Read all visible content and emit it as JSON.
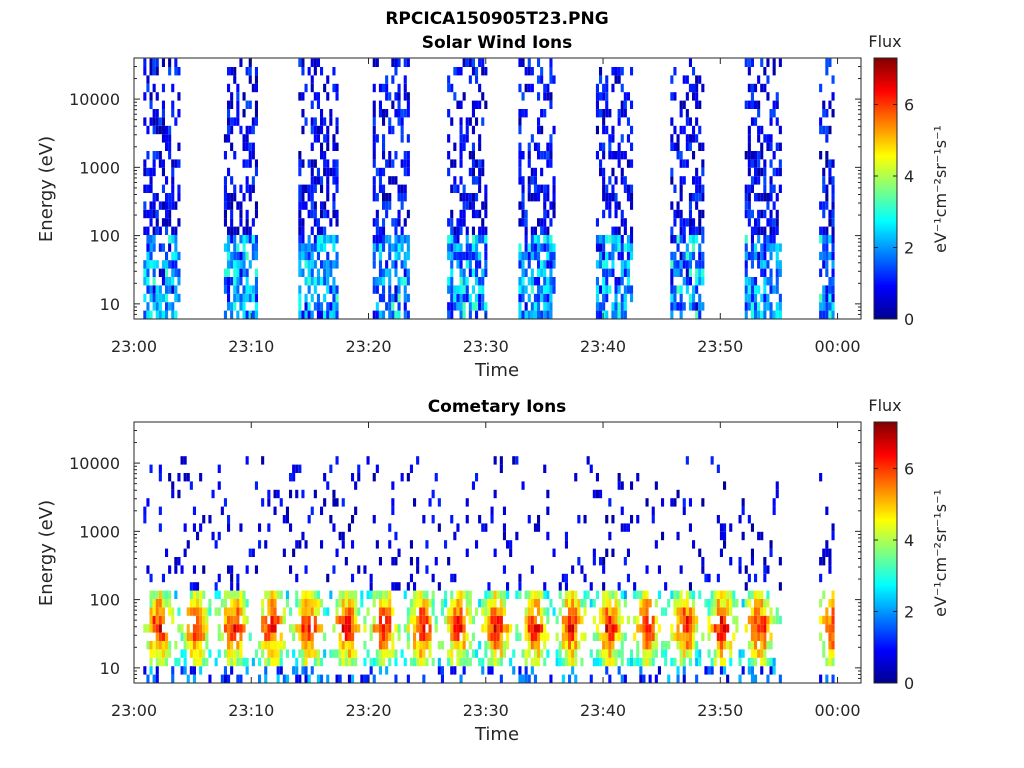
{
  "figure_title": "RPCICA150905T23.PNG",
  "chart_data": [
    {
      "type": "heatmap",
      "title": "Solar Wind Ions",
      "xlabel": "Time",
      "ylabel": "Energy (eV)",
      "yscale": "log",
      "ylim": [
        6,
        40000
      ],
      "yticks": [
        10,
        100,
        1000,
        10000
      ],
      "ytick_labels": [
        "10",
        "100",
        "1000",
        "10000"
      ],
      "xlim": [
        "23:00",
        "00:02"
      ],
      "xticks": [
        "23:00",
        "23:10",
        "23:20",
        "23:30",
        "23:40",
        "23:50",
        "00:00"
      ],
      "colorbar": {
        "title": "Flux",
        "label": "eV⁻¹cm⁻²sr⁻¹s⁻¹",
        "range": [
          0,
          7.3
        ],
        "ticks": [
          "0",
          "2",
          "4",
          "6"
        ],
        "colormap": "jet"
      },
      "scan_intervals": [
        [
          "23:00:40",
          "23:04:00"
        ],
        [
          "23:07:40",
          "23:10:40"
        ],
        [
          "23:14:00",
          "23:17:30"
        ],
        [
          "23:20:20",
          "23:23:30"
        ],
        [
          "23:26:40",
          "23:30:10"
        ],
        [
          "23:32:50",
          "23:36:00"
        ],
        [
          "23:39:20",
          "23:42:30"
        ],
        [
          "23:45:40",
          "23:48:40"
        ],
        [
          "23:52:00",
          "23:55:10"
        ],
        [
          "23:58:30",
          "23:59:50"
        ]
      ],
      "features": [
        {
          "energy_range": [
            6,
            90
          ],
          "level": [
            1.5,
            3.5
          ],
          "description": ""
        },
        {
          "energy_range": [
            90,
            40000
          ],
          "level": [
            0.2,
            1.5
          ],
          "description": ""
        }
      ]
    },
    {
      "type": "heatmap",
      "title": "Cometary Ions",
      "xlabel": "Time",
      "ylabel": "Energy (eV)",
      "yscale": "log",
      "ylim": [
        6,
        40000
      ],
      "yticks": [
        10,
        100,
        1000,
        10000
      ],
      "ytick_labels": [
        "10",
        "100",
        "1000",
        "10000"
      ],
      "xlim": [
        "23:00",
        "00:02"
      ],
      "xticks": [
        "23:00",
        "23:10",
        "23:20",
        "23:30",
        "23:40",
        "23:50",
        "00:00"
      ],
      "colorbar": {
        "title": "Flux",
        "label": "eV⁻¹cm⁻²sr⁻¹s⁻¹",
        "range": [
          0,
          7.3
        ],
        "ticks": [
          "0",
          "2",
          "4",
          "6"
        ],
        "colormap": "jet"
      },
      "scan_intervals": [
        [
          "23:00:40",
          "23:55:10"
        ],
        [
          "23:58:30",
          "23:59:50"
        ]
      ],
      "features": [
        {
          "energy_range": [
            12,
            120
          ],
          "peak_energy": 40,
          "level": [
            3,
            6.5
          ],
          "period_min": 3.2,
          "description": ""
        },
        {
          "energy_range": [
            120,
            12000
          ],
          "level": [
            0.2,
            1.2
          ],
          "description": ""
        }
      ]
    }
  ],
  "colors": {
    "text": "#262626",
    "axis": "#262626",
    "background": "#ffffff"
  }
}
